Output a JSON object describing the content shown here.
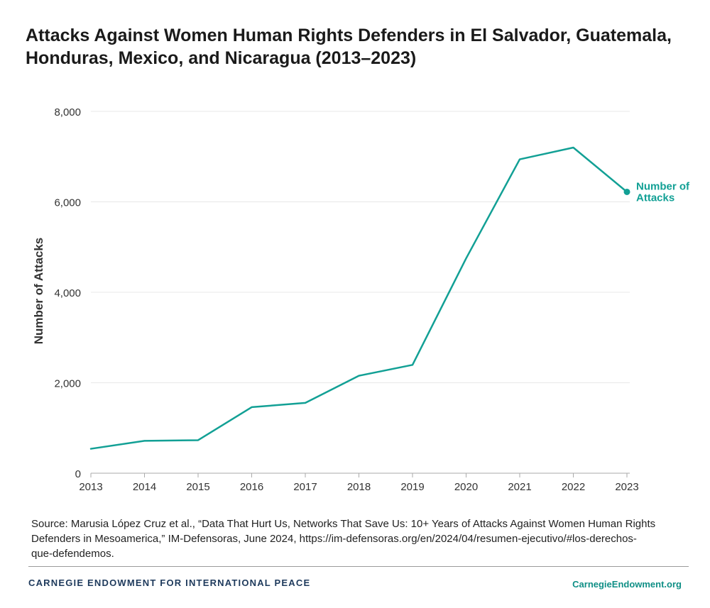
{
  "title": "Attacks Against Women Human Rights Defenders in El Salvador, Guatemala, Honduras, Mexico, and Nicaragua (2013–2023)",
  "source": "Source: Marusia López Cruz et al., “Data That Hurt Us, Networks That Save Us: 10+ Years of Attacks Against Women Human Rights Defenders in Mesoamerica,” IM-Defensoras, June 2024, https://im-defensoras.org/en/2024/04/resumen-ejecutivo/#los-derechos-que-defendemos.",
  "footer": {
    "org": "CARNEGIE ENDOWMENT FOR INTERNATIONAL PEACE",
    "site": "CarnegieEndowment.org"
  },
  "colors": {
    "line": "#12a095",
    "grid": "#e8e8e8",
    "axis": "#aaaaaa"
  },
  "chart_data": {
    "type": "line",
    "title": "Attacks Against Women Human Rights Defenders in El Salvador, Guatemala, Honduras, Mexico, and Nicaragua (2013–2023)",
    "xlabel": "",
    "ylabel": "Number of Attacks",
    "x": [
      "2013",
      "2014",
      "2015",
      "2016",
      "2017",
      "2018",
      "2019",
      "2020",
      "2021",
      "2022",
      "2023"
    ],
    "yticks": [
      0,
      2000,
      4000,
      6000,
      8000
    ],
    "ytick_labels": [
      "0",
      "2,000",
      "4,000",
      "6,000",
      "8,000"
    ],
    "ylim": [
      0,
      8000
    ],
    "grid": true,
    "series": [
      {
        "name": "Number of Attacks",
        "label_lines": [
          "Number of",
          "Attacks"
        ],
        "values": [
          540,
          715,
          730,
          1460,
          1555,
          2155,
          2395,
          4750,
          6940,
          7200,
          6220
        ]
      }
    ]
  }
}
